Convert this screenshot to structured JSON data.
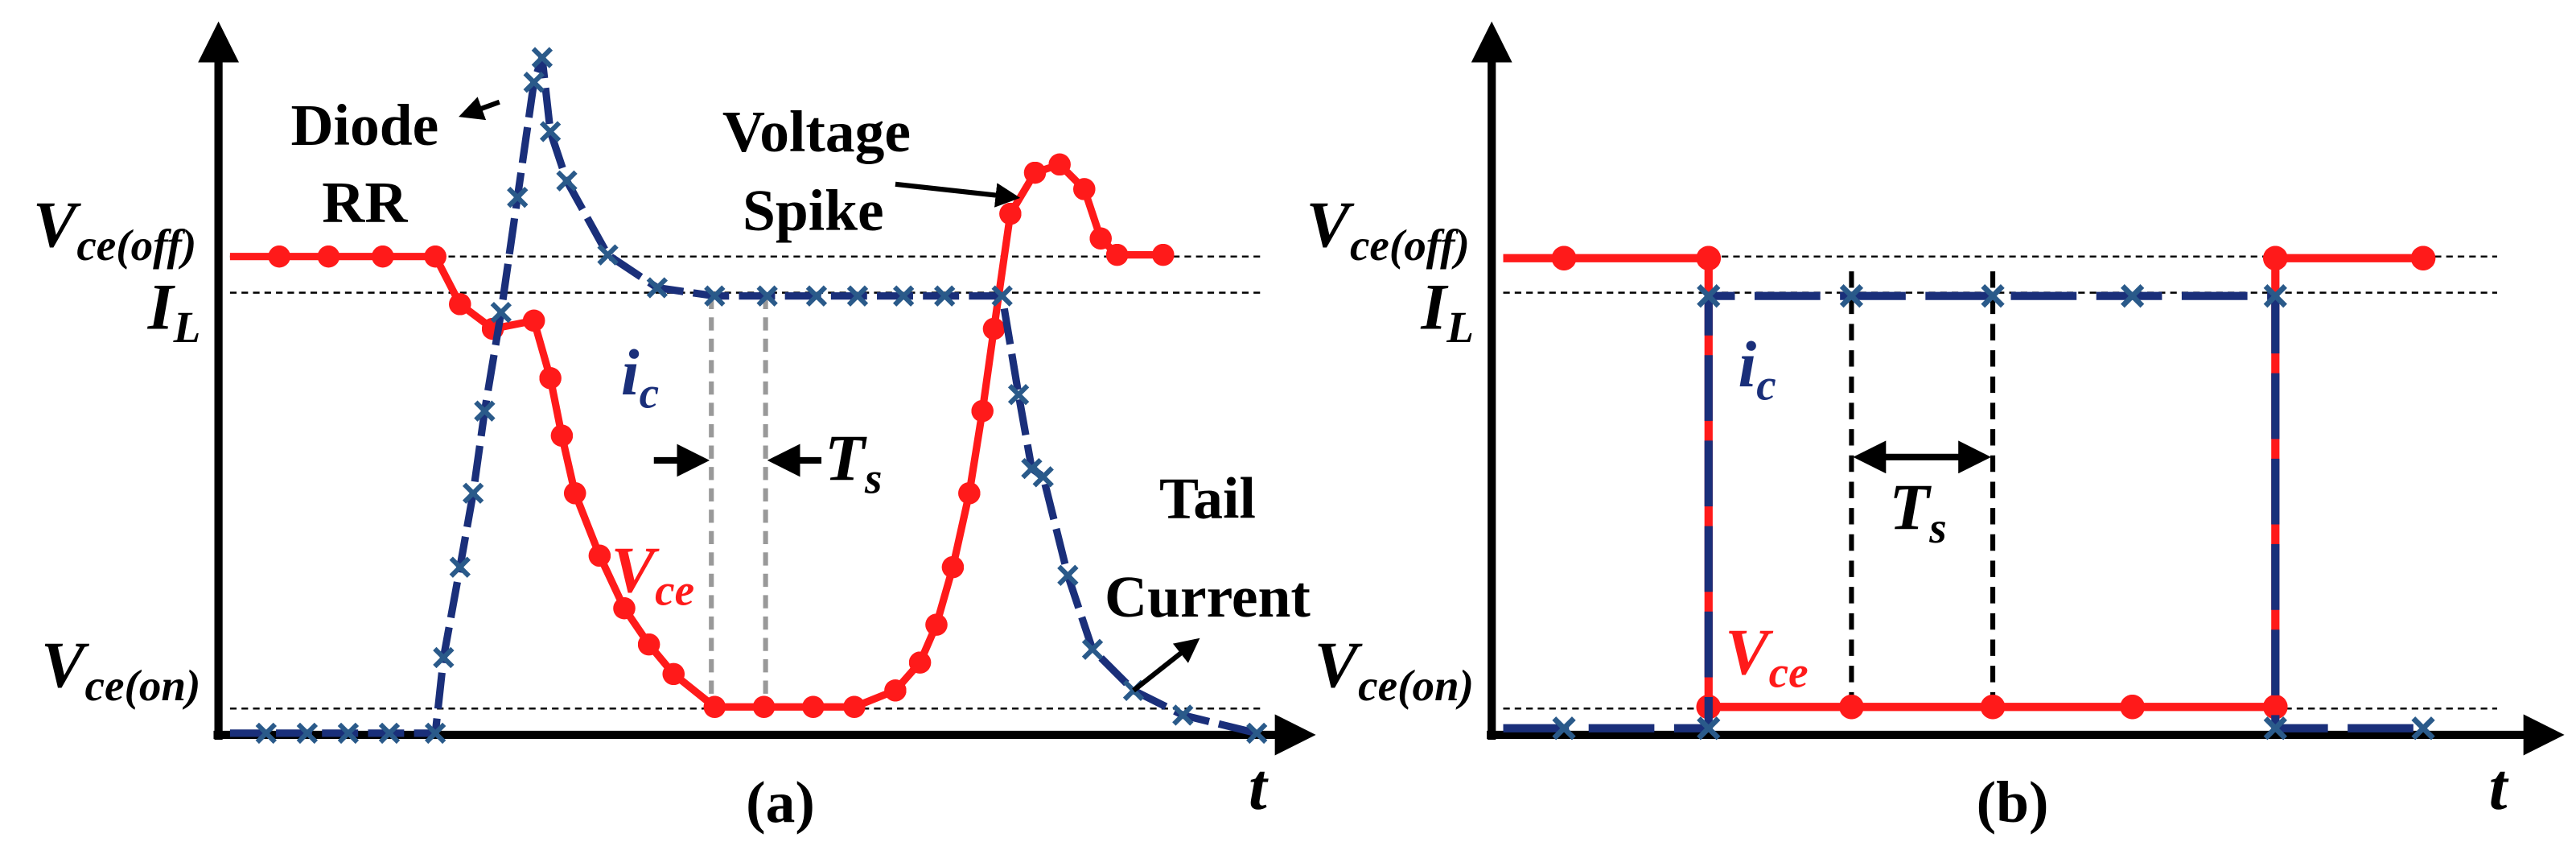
{
  "panels": [
    {
      "caption": "(a)",
      "t_axis": "t",
      "v_off": {
        "main": "V",
        "sub": "ce(off)"
      },
      "i_load": {
        "main": "I",
        "sub": "L"
      },
      "v_on": {
        "main": "V",
        "sub": "ce(on)"
      },
      "ic": {
        "main": "i",
        "sub": "c"
      },
      "vce": {
        "main": "V",
        "sub": "ce"
      },
      "ts": {
        "main": "T",
        "sub": "s"
      },
      "notes": [
        "Diode",
        "RR",
        "Voltage",
        "Spike",
        "Tail",
        "Current"
      ]
    },
    {
      "caption": "(b)",
      "t_axis": "t",
      "v_off": {
        "main": "V",
        "sub": "ce(off)"
      },
      "i_load": {
        "main": "I",
        "sub": "L"
      },
      "v_on": {
        "main": "V",
        "sub": "ce(on)"
      },
      "ic": {
        "main": "i",
        "sub": "c"
      },
      "vce": {
        "main": "V",
        "sub": "ce"
      },
      "ts": {
        "main": "T",
        "sub": "s"
      }
    }
  ]
}
